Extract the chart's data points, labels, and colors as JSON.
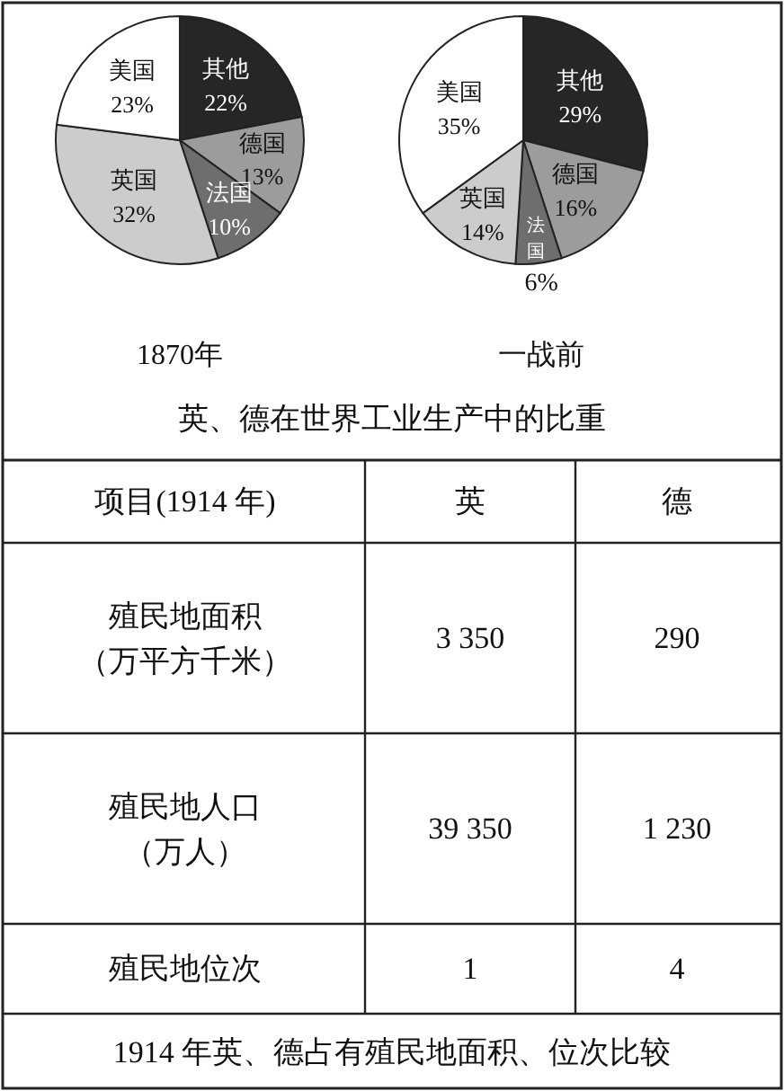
{
  "chart_data": [
    {
      "type": "pie",
      "title": "1870年",
      "categories": [
        "其他",
        "德国",
        "法国",
        "英国",
        "美国"
      ],
      "values": [
        22,
        13,
        10,
        32,
        23
      ],
      "colors": [
        "#262626",
        "#9c9c9c",
        "#6e6e6e",
        "#cccccc",
        "#ffffff"
      ],
      "value_labels": [
        "22%",
        "13%",
        "10%",
        "32%",
        "23%"
      ],
      "annotations": [
        "英、德在世界工业生产中的比重"
      ]
    },
    {
      "type": "pie",
      "title": "一战前",
      "categories": [
        "其他",
        "德国",
        "法国",
        "英国",
        "美国"
      ],
      "values": [
        29,
        16,
        6,
        14,
        35
      ],
      "colors": [
        "#262626",
        "#9c9c9c",
        "#6e6e6e",
        "#cccccc",
        "#ffffff"
      ],
      "value_labels": [
        "29%",
        "16%",
        "6%",
        "14%",
        "35%"
      ]
    },
    {
      "type": "other",
      "title": "1914 年英、德占有殖民地面积、位次比较",
      "annotations": [
        "项目(1914 年)",
        "英",
        "德",
        "殖民地面积（万平方千米）",
        "3 350",
        "290",
        "殖民地人口（万人）",
        "39 350",
        "1 230",
        "殖民地位次",
        "1",
        "4"
      ]
    }
  ]
}
